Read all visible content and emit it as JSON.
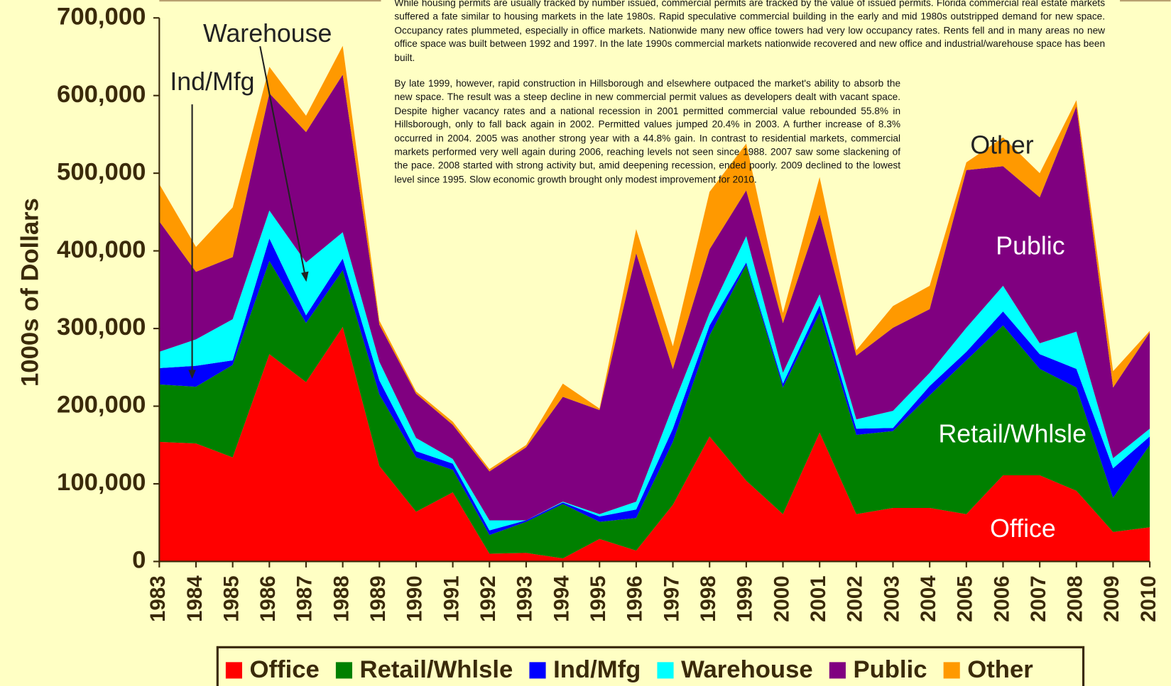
{
  "chart_data": {
    "type": "stacked_area",
    "y_axis_label": "1000s of Dollars",
    "categories": [
      "1983",
      "1984",
      "1985",
      "1986",
      "1987",
      "1988",
      "1989",
      "1990",
      "1991",
      "1992",
      "1993",
      "1994",
      "1995",
      "1996",
      "1997",
      "1998",
      "1999",
      "2000",
      "2001",
      "2002",
      "2003",
      "2004",
      "2005",
      "2006",
      "2007",
      "2008",
      "2009",
      "2010"
    ],
    "series": [
      {
        "name": "Office",
        "color": "#ff0000",
        "values": [
          154000,
          152000,
          134000,
          267000,
          231000,
          302000,
          123000,
          64000,
          89000,
          10000,
          11000,
          4000,
          29000,
          14000,
          73000,
          161000,
          104000,
          61000,
          166000,
          61000,
          69000,
          69000,
          61000,
          111000,
          111000,
          91000,
          38000,
          44000
        ]
      },
      {
        "name": "Retail/Whlsle",
        "color": "#008000",
        "values": [
          74000,
          73000,
          119000,
          120000,
          76000,
          73000,
          92000,
          70000,
          29000,
          24000,
          40000,
          70000,
          22000,
          42000,
          81000,
          130000,
          278000,
          163000,
          154000,
          102000,
          99000,
          145000,
          198000,
          193000,
          137000,
          133000,
          44000,
          106000
        ]
      },
      {
        "name": "Ind/Mfg",
        "color": "#0000ff",
        "values": [
          21000,
          27000,
          6000,
          29000,
          10000,
          15000,
          18000,
          8000,
          8000,
          6000,
          2000,
          2000,
          7000,
          11000,
          17000,
          13000,
          3000,
          5000,
          10000,
          8000,
          4000,
          12000,
          11000,
          18000,
          19000,
          24000,
          38000,
          11000
        ]
      },
      {
        "name": "Warehouse",
        "color": "#00ffff",
        "values": [
          21000,
          34000,
          53000,
          36000,
          68000,
          34000,
          24000,
          17000,
          6000,
          13000,
          0,
          1000,
          3000,
          10000,
          29000,
          16000,
          34000,
          14000,
          14000,
          12000,
          22000,
          17000,
          31000,
          33000,
          14000,
          48000,
          13000,
          10000
        ]
      },
      {
        "name": "Public",
        "color": "#800080",
        "values": [
          168000,
          87000,
          80000,
          151000,
          168000,
          203000,
          48000,
          57000,
          44000,
          63000,
          94000,
          135000,
          134000,
          320000,
          48000,
          82000,
          59000,
          64000,
          103000,
          82000,
          107000,
          82000,
          203000,
          154000,
          188000,
          290000,
          91000,
          124000
        ]
      },
      {
        "name": "Other",
        "color": "#ff9900",
        "values": [
          48000,
          32000,
          64000,
          34000,
          21000,
          37000,
          5000,
          3000,
          4000,
          3000,
          3000,
          17000,
          2000,
          31000,
          29000,
          74000,
          60000,
          13000,
          48000,
          7000,
          28000,
          30000,
          10000,
          37000,
          31000,
          8000,
          21000,
          2000
        ]
      }
    ],
    "ylim": [
      0,
      700000
    ],
    "yticks": [
      {
        "value": 0,
        "label": "0"
      },
      {
        "value": 100000,
        "label": "100,000"
      },
      {
        "value": 200000,
        "label": "200,000"
      },
      {
        "value": 300000,
        "label": "300,000"
      },
      {
        "value": 400000,
        "label": "400,000"
      },
      {
        "value": 500000,
        "label": "500,000"
      },
      {
        "value": 600000,
        "label": "600,000"
      },
      {
        "value": 700000,
        "label": "700,000"
      }
    ],
    "legend": "bottom",
    "annotations": [
      {
        "text": "Warehouse"
      },
      {
        "text": "Ind/Mfg"
      },
      {
        "text": "Other"
      },
      {
        "text": "Public"
      },
      {
        "text": "Retail/Whlsle"
      },
      {
        "text": "Office"
      }
    ],
    "text_paragraphs": [
      "While housing permits are usually tracked by number issued, commercial permits are tracked by the value of issued permits. Florida commercial real estate markets suffered a fate similar to housing markets in the late 1980s.  Rapid speculative commercial building in the early and mid 1980s outstripped demand for new space.  Occupancy rates plummeted, especially in office markets.  Nationwide many new office towers had very low occupancy rates.  Rents fell and in many areas no new office space was built between 1992 and 1997.  In the late 1990s commercial markets nationwide recovered and new office and industrial/warehouse space has been built.",
      "By late 1999, however, rapid construction in Hillsborough and elsewhere outpaced the market's ability to absorb the new space.  The result was a  steep decline in new commercial permit values as developers dealt with vacant space.  Despite higher vacancy rates and a national recession in 2001 permitted commercial value rebounded 55.8% in Hillsborough, only to fall back again in 2002.  Permitted values jumped 20.4% in 2003.  A further increase of 8.3% occurred in 2004.  2005 was another strong year with a 44.8% gain.  In contrast to residential markets, commercial markets performed very well again during 2006, reaching levels not seen since 1988.  2007 saw some slackening of the pace.  2008 started with strong activity but, amid deepening recession, ended poorly.  2009 declined to the lowest level since 1995.  Slow economic growth brought only modest improvement for 2010."
    ]
  }
}
